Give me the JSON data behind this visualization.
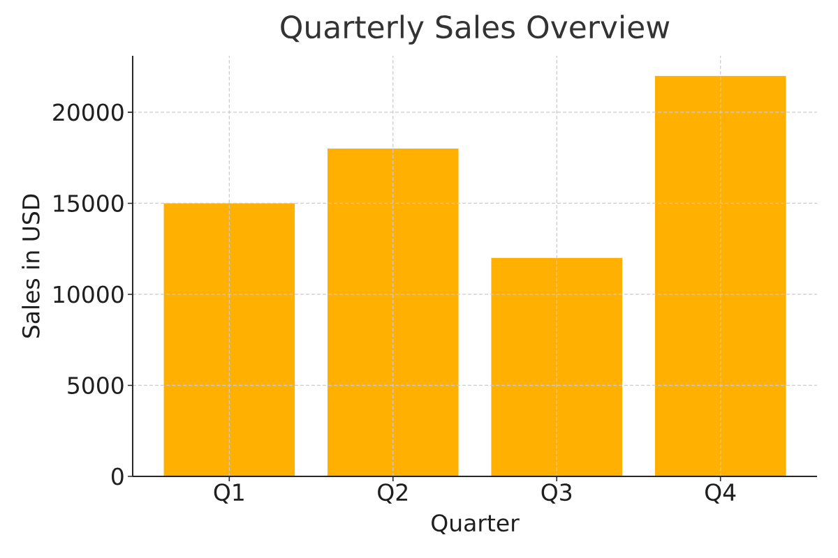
{
  "chart_data": {
    "type": "bar",
    "title": "Quarterly Sales Overview",
    "xlabel": "Quarter",
    "ylabel": "Sales in USD",
    "categories": [
      "Q1",
      "Q2",
      "Q3",
      "Q4"
    ],
    "values": [
      15000,
      18000,
      12000,
      22000
    ],
    "color": "#ffb000",
    "ylim": [
      0,
      23100
    ],
    "yticks": [
      0,
      5000,
      10000,
      15000,
      20000
    ],
    "grid": true
  }
}
